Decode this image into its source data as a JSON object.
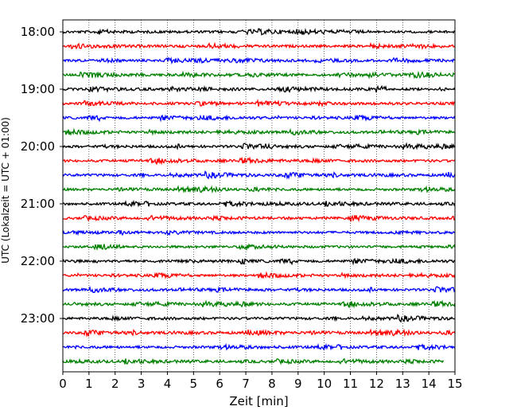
{
  "chart_data": {
    "type": "line",
    "title": "",
    "xlabel": "Zeit  [min]",
    "ylabel": "UTC (Lokalzeit = UTC + 01:00)",
    "xlim": [
      0,
      15
    ],
    "x_ticks": [
      0,
      1,
      2,
      3,
      4,
      5,
      6,
      7,
      8,
      9,
      10,
      11,
      12,
      13,
      14,
      15
    ],
    "y_tick_labels": [
      "18:00",
      "19:00",
      "20:00",
      "21:00",
      "22:00",
      "23:00"
    ],
    "rows_per_hour": 4,
    "minutes_per_row": 15,
    "grid": "vertical dotted at each minute",
    "row_colors": [
      "#000000",
      "#ff0000",
      "#0000ff",
      "#008000"
    ],
    "row_start_times": [
      "18:00",
      "18:15",
      "18:30",
      "18:45",
      "19:00",
      "19:15",
      "19:30",
      "19:45",
      "20:00",
      "20:15",
      "20:30",
      "20:45",
      "21:00",
      "21:15",
      "21:30",
      "21:45",
      "22:00",
      "22:15",
      "22:30",
      "22:45",
      "23:00",
      "23:15",
      "23:30",
      "23:45"
    ],
    "last_row_end_minute": 14.6
  }
}
